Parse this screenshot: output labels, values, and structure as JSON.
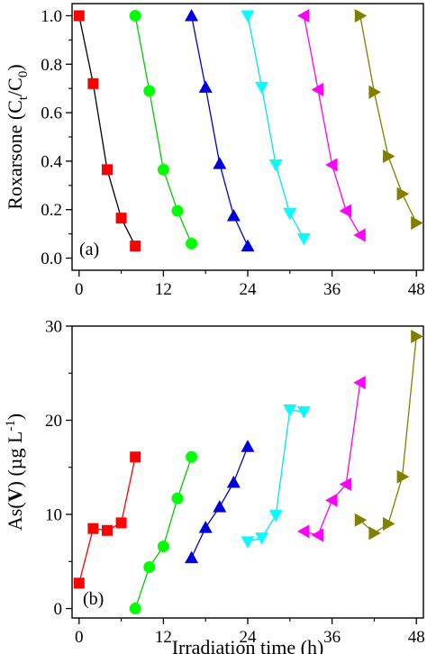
{
  "chart_data": [
    {
      "type": "line",
      "panel_label": "(a)",
      "xlabel": "",
      "ylabel": "Roxarsone (C_t/C_0)",
      "ylabel_parts": {
        "main": "Roxarsone  (C",
        "sub1": "t",
        "mid": "/C",
        "sub2": "0",
        "end": ")"
      },
      "xlim": [
        -1,
        49
      ],
      "ylim": [
        -0.05,
        1.05
      ],
      "xticks": [
        0,
        12,
        24,
        36,
        48
      ],
      "yticks": [
        0.0,
        0.2,
        0.4,
        0.6,
        0.8,
        1.0
      ],
      "ytick_labels": [
        "0.0",
        "0.2",
        "0.4",
        "0.6",
        "0.8",
        "1.0"
      ],
      "series": [
        {
          "color": "#000000",
          "marker_color": "#ff0000",
          "marker": "square",
          "x": [
            0,
            2,
            4,
            6,
            8
          ],
          "y": [
            1.0,
            0.72,
            0.365,
            0.165,
            0.05
          ]
        },
        {
          "color": "#00cc00",
          "marker_color": "#00ff00",
          "marker": "circle",
          "x": [
            8,
            10,
            12,
            14,
            16
          ],
          "y": [
            1.0,
            0.69,
            0.365,
            0.195,
            0.06
          ]
        },
        {
          "color": "#0000cc",
          "marker_color": "#0000dd",
          "marker": "triangle-up",
          "x": [
            16,
            18,
            20,
            22,
            24
          ],
          "y": [
            1.0,
            0.705,
            0.39,
            0.175,
            0.05
          ]
        },
        {
          "color": "#00e5ee",
          "marker_color": "#00ffff",
          "marker": "triangle-down",
          "x": [
            24,
            26,
            28,
            30,
            32
          ],
          "y": [
            1.0,
            0.705,
            0.385,
            0.185,
            0.08
          ]
        },
        {
          "color": "#ff00ff",
          "marker_color": "#ff00ff",
          "marker": "triangle-left",
          "x": [
            32,
            34,
            36,
            38,
            40
          ],
          "y": [
            1.0,
            0.695,
            0.385,
            0.195,
            0.095
          ]
        },
        {
          "color": "#808000",
          "marker_color": "#808000",
          "marker": "triangle-right",
          "x": [
            40,
            42,
            44,
            46,
            48
          ],
          "y": [
            1.0,
            0.685,
            0.42,
            0.265,
            0.145
          ]
        }
      ]
    },
    {
      "type": "line",
      "panel_label": "(b)",
      "xlabel": "Irradiation time (h)",
      "ylabel": "As(V) (µg L-1)",
      "ylabel_parts": {
        "main": "As(",
        "roman": "V",
        "mid": ") (µg L",
        "sup": "-1",
        "end": ")"
      },
      "xlim": [
        -1,
        49
      ],
      "ylim": [
        -1,
        30
      ],
      "xticks": [
        0,
        12,
        24,
        36,
        48
      ],
      "yticks": [
        0,
        10,
        20,
        30
      ],
      "ytick_labels": [
        "0",
        "10",
        "20",
        "30"
      ],
      "series": [
        {
          "color": "#ff0000",
          "marker_color": "#ff0000",
          "marker": "square",
          "x": [
            0,
            2,
            4,
            6,
            8
          ],
          "y": [
            2.7,
            8.5,
            8.3,
            9.1,
            16.1
          ]
        },
        {
          "color": "#00cc00",
          "marker_color": "#00ff00",
          "marker": "circle",
          "x": [
            8,
            10,
            12,
            14,
            16
          ],
          "y": [
            0.0,
            4.4,
            6.6,
            11.7,
            16.1
          ]
        },
        {
          "color": "#0000cc",
          "marker_color": "#0000dd",
          "marker": "triangle-up",
          "x": [
            16,
            18,
            20,
            22,
            24
          ],
          "y": [
            5.4,
            8.6,
            10.8,
            13.4,
            17.2
          ]
        },
        {
          "color": "#00e5ee",
          "marker_color": "#00ffff",
          "marker": "triangle-down",
          "x": [
            24,
            26,
            28,
            30,
            32
          ],
          "y": [
            7.1,
            7.5,
            9.9,
            21.1,
            20.9
          ]
        },
        {
          "color": "#ff00ff",
          "marker_color": "#ff00ff",
          "marker": "triangle-left",
          "x": [
            32,
            34,
            36,
            38,
            40
          ],
          "y": [
            8.2,
            7.8,
            11.5,
            13.2,
            24.0
          ]
        },
        {
          "color": "#808000",
          "marker_color": "#808000",
          "marker": "triangle-right",
          "x": [
            40,
            42,
            44,
            46,
            48
          ],
          "y": [
            9.4,
            8.0,
            9.0,
            14.0,
            28.9
          ]
        }
      ]
    }
  ]
}
